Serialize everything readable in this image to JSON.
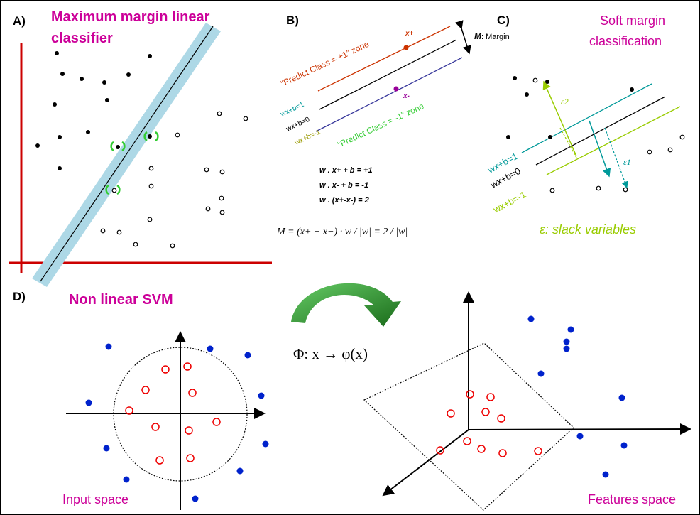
{
  "panels": {
    "a": {
      "label": "A)",
      "title_line1": "Maximum margin linear",
      "title_line2": "classifier"
    },
    "b": {
      "label": "B)",
      "zone_plus": "“Predict Class = +1” zone",
      "zone_minus": "“Predict Class = -1” zone",
      "x_plus": "x+",
      "x_minus": "x-",
      "margin_m": "M",
      "margin_text": ": Margin",
      "line_plus": "wx+b=1",
      "line_zero": "wx+b=0",
      "line_minus": "wx+b=-1",
      "eq1": "w . x+ + b = +1",
      "eq2": "w . x- + b = -1",
      "eq3": "w . (x+-x-) = 2",
      "formula": "M = (x+ − x−) · w / |w| = 2 / |w|"
    },
    "c": {
      "label": "C)",
      "title_line1": "Soft margin",
      "title_line2": "classification",
      "line_plus": "wx+b=1",
      "line_zero": "wx+b=0",
      "line_minus": "wx+b=-1",
      "eps1": "ε1",
      "eps2": "ε2",
      "slack": "ε: slack variables"
    },
    "d": {
      "label": "D)",
      "title": "Non linear SVM",
      "mapping": "Φ:  x → φ(x)",
      "input_space": "Input space",
      "features_space": "Features space"
    }
  },
  "colors": {
    "magenta": "#cc0099",
    "red_axis": "#cc0000",
    "margin_band": "#add8e6",
    "green_arrow": "#2e8b2e",
    "class_plus": "#cc3300",
    "class_minus": "#333399",
    "teal": "#009999",
    "olive": "#999900",
    "yellowgreen": "#99cc00",
    "zone_green": "#33cc33",
    "blue_dot": "#0022cc",
    "red_circle": "#ee0000"
  }
}
